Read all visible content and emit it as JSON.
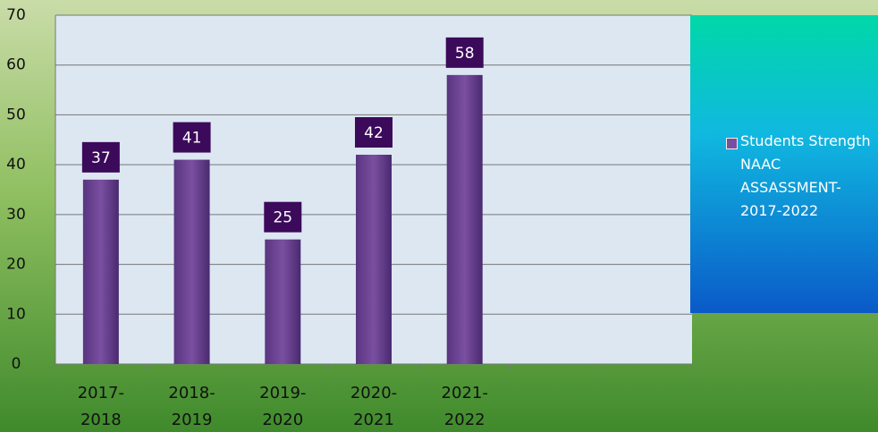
{
  "chart_data": {
    "type": "bar",
    "categories": [
      "2017-2018",
      "2018-2019",
      "2019-2020",
      "2020-2021",
      "2021-2022",
      null,
      null
    ],
    "series": [
      {
        "name": "Students Strength NAAC ASSASSMENT-2017-2022",
        "color": "#7a4fa0",
        "values": [
          37,
          41,
          25,
          42,
          58,
          null,
          null
        ]
      }
    ],
    "ylim": [
      0,
      70
    ],
    "yticks": [
      0,
      10,
      20,
      30,
      40,
      50,
      60,
      70
    ],
    "grid": true,
    "legend": "right"
  }
}
